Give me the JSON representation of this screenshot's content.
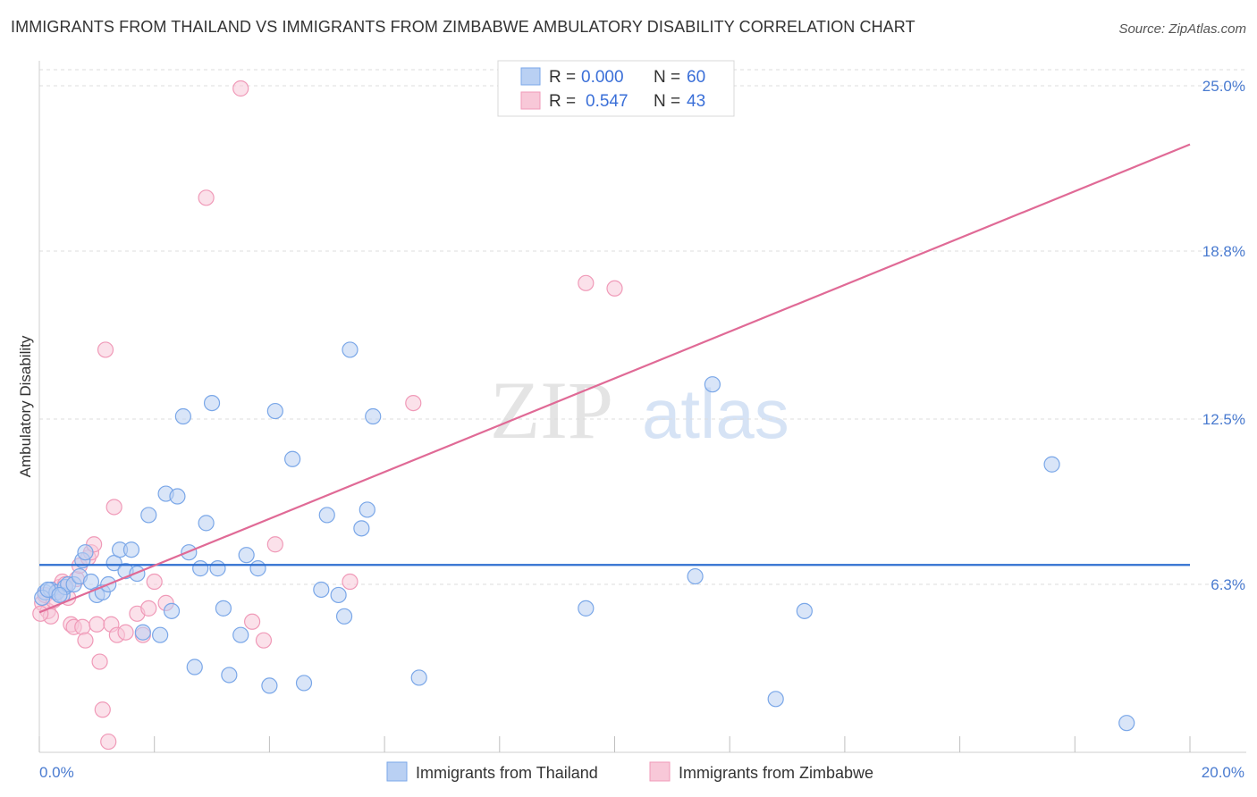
{
  "title": "IMMIGRANTS FROM THAILAND VS IMMIGRANTS FROM ZIMBABWE AMBULATORY DISABILITY CORRELATION CHART",
  "source": "Source: ZipAtlas.com",
  "watermark": {
    "zip": "ZIP",
    "atlas": "atlas"
  },
  "chart_data": {
    "type": "scatter",
    "ylabel": "Ambulatory Disability",
    "xlim": [
      0,
      20
    ],
    "ylim": [
      0,
      25.8
    ],
    "y_ticks": [
      {
        "value": 25.0,
        "label": "25.0%"
      },
      {
        "value": 18.8,
        "label": "18.8%"
      },
      {
        "value": 12.5,
        "label": "12.5%"
      },
      {
        "value": 6.3,
        "label": "6.3%"
      }
    ],
    "x_tick_labels": {
      "min": "0.0%",
      "max": "20.0%"
    },
    "grid": true,
    "legend_position": "top-center",
    "series": [
      {
        "name": "Immigrants from Thailand",
        "color": "#7aa7e8",
        "fill": "#b9d0f3",
        "line_color": "#2f6fd0",
        "R": "0.000",
        "N": "60",
        "trend": [
          [
            0,
            7.03
          ],
          [
            20,
            7.03
          ]
        ],
        "points": [
          [
            0.1,
            6.0
          ],
          [
            0.2,
            6.1
          ],
          [
            0.3,
            6.0
          ],
          [
            0.4,
            5.9
          ],
          [
            0.45,
            6.2
          ],
          [
            0.5,
            6.3
          ],
          [
            0.6,
            6.3
          ],
          [
            0.7,
            6.6
          ],
          [
            0.75,
            7.2
          ],
          [
            0.8,
            7.5
          ],
          [
            0.9,
            6.4
          ],
          [
            1.0,
            5.9
          ],
          [
            1.1,
            6.0
          ],
          [
            1.2,
            6.3
          ],
          [
            1.3,
            7.1
          ],
          [
            1.4,
            7.6
          ],
          [
            1.5,
            6.8
          ],
          [
            1.6,
            7.6
          ],
          [
            1.7,
            6.7
          ],
          [
            1.8,
            4.5
          ],
          [
            1.9,
            8.9
          ],
          [
            2.1,
            4.4
          ],
          [
            2.2,
            9.7
          ],
          [
            2.3,
            5.3
          ],
          [
            2.4,
            9.6
          ],
          [
            2.5,
            12.6
          ],
          [
            2.6,
            7.5
          ],
          [
            2.7,
            3.2
          ],
          [
            2.8,
            6.9
          ],
          [
            2.9,
            8.6
          ],
          [
            3.0,
            13.1
          ],
          [
            3.1,
            6.9
          ],
          [
            3.2,
            5.4
          ],
          [
            3.3,
            2.9
          ],
          [
            3.5,
            4.4
          ],
          [
            3.6,
            7.4
          ],
          [
            3.8,
            6.9
          ],
          [
            4.0,
            2.5
          ],
          [
            4.1,
            12.8
          ],
          [
            4.4,
            11.0
          ],
          [
            4.6,
            2.6
          ],
          [
            4.9,
            6.1
          ],
          [
            5.0,
            8.9
          ],
          [
            5.2,
            5.9
          ],
          [
            5.3,
            5.1
          ],
          [
            5.4,
            15.1
          ],
          [
            5.6,
            8.4
          ],
          [
            5.7,
            9.1
          ],
          [
            5.8,
            12.6
          ],
          [
            6.6,
            2.8
          ],
          [
            9.5,
            5.4
          ],
          [
            11.4,
            6.6
          ],
          [
            11.7,
            13.8
          ],
          [
            12.8,
            2.0
          ],
          [
            13.3,
            5.3
          ],
          [
            17.6,
            10.8
          ],
          [
            18.9,
            1.1
          ],
          [
            0.05,
            5.8
          ],
          [
            0.15,
            6.1
          ],
          [
            0.35,
            5.9
          ]
        ]
      },
      {
        "name": "Immigrants from Zimbabwe",
        "color": "#f09ab8",
        "fill": "#f8c8d8",
        "line_color": "#e06a96",
        "R": "0.547",
        "N": "43",
        "trend": [
          [
            0,
            5.25
          ],
          [
            20,
            22.8
          ]
        ],
        "points": [
          [
            0.05,
            5.6
          ],
          [
            0.1,
            5.9
          ],
          [
            0.15,
            5.3
          ],
          [
            0.2,
            5.1
          ],
          [
            0.25,
            5.7
          ],
          [
            0.3,
            6.0
          ],
          [
            0.35,
            6.2
          ],
          [
            0.4,
            6.4
          ],
          [
            0.45,
            6.3
          ],
          [
            0.5,
            5.8
          ],
          [
            0.55,
            4.8
          ],
          [
            0.6,
            4.7
          ],
          [
            0.65,
            6.5
          ],
          [
            0.7,
            7.0
          ],
          [
            0.75,
            4.7
          ],
          [
            0.8,
            4.2
          ],
          [
            0.85,
            7.3
          ],
          [
            0.9,
            7.5
          ],
          [
            0.95,
            7.8
          ],
          [
            1.0,
            4.8
          ],
          [
            1.05,
            3.4
          ],
          [
            1.1,
            1.6
          ],
          [
            1.15,
            15.1
          ],
          [
            1.2,
            0.4
          ],
          [
            1.25,
            4.8
          ],
          [
            1.3,
            9.2
          ],
          [
            1.35,
            4.4
          ],
          [
            1.5,
            4.5
          ],
          [
            1.7,
            5.2
          ],
          [
            1.8,
            4.4
          ],
          [
            1.9,
            5.4
          ],
          [
            2.0,
            6.4
          ],
          [
            2.2,
            5.6
          ],
          [
            2.9,
            20.8
          ],
          [
            3.5,
            24.9
          ],
          [
            3.7,
            4.9
          ],
          [
            3.9,
            4.2
          ],
          [
            4.1,
            7.8
          ],
          [
            5.4,
            6.4
          ],
          [
            6.5,
            13.1
          ],
          [
            9.5,
            17.6
          ],
          [
            10.0,
            17.4
          ],
          [
            0.02,
            5.2
          ]
        ]
      }
    ]
  }
}
